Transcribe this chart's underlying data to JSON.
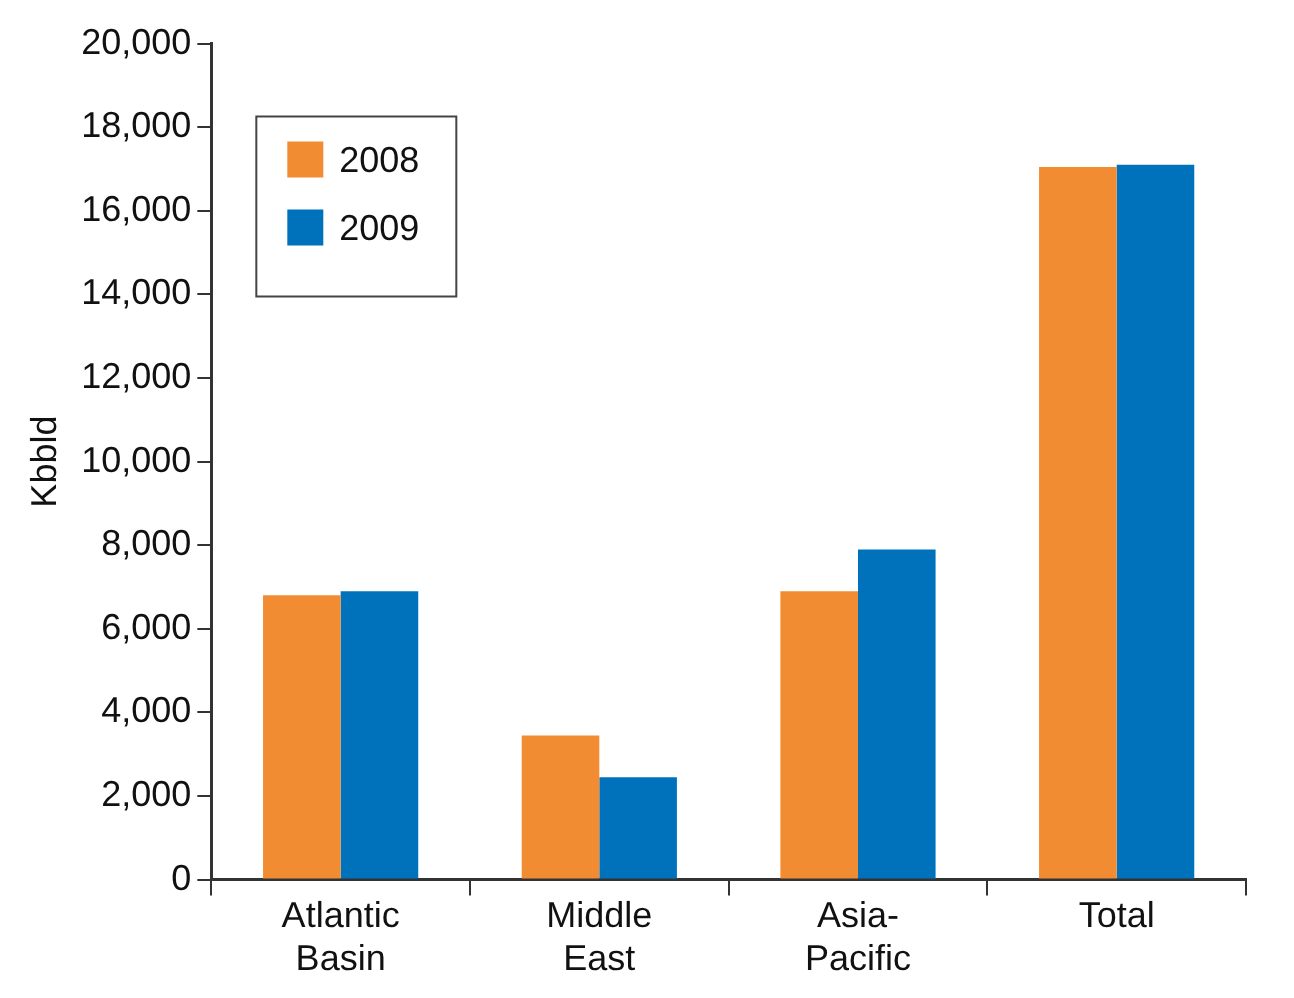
{
  "chart_data": {
    "type": "bar",
    "ylabel": "Kbbld",
    "categories": [
      "Atlantic Basin",
      "Middle East",
      "Asia-Pacific",
      "Total"
    ],
    "series": [
      {
        "name": "2008",
        "color": "#f28c33",
        "values": [
          6800,
          3450,
          6900,
          17050
        ]
      },
      {
        "name": "2009",
        "color": "#0072bc",
        "values": [
          6900,
          2450,
          7900,
          17100
        ]
      }
    ],
    "ylim": [
      0,
      20000
    ],
    "yticks": [
      {
        "value": 0,
        "label": "0"
      },
      {
        "value": 2000,
        "label": "2,000"
      },
      {
        "value": 4000,
        "label": "4,000"
      },
      {
        "value": 6000,
        "label": "6,000"
      },
      {
        "value": 8000,
        "label": "8,000"
      },
      {
        "value": 10000,
        "label": "10,000"
      },
      {
        "value": 12000,
        "label": "12,000"
      },
      {
        "value": 14000,
        "label": "14,000"
      },
      {
        "value": 16000,
        "label": "16,000"
      },
      {
        "value": 18000,
        "label": "18,000"
      },
      {
        "value": 20000,
        "label": "20,000"
      }
    ],
    "grid": false,
    "legend": "top left"
  }
}
